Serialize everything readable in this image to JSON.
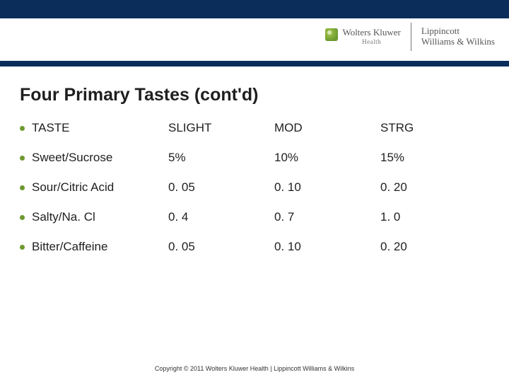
{
  "header": {
    "brand1_name": "Wolters Kluwer",
    "brand1_sub": "Health",
    "brand2_line1": "Lippincott",
    "brand2_line2": "Williams & Wilkins"
  },
  "title": "Four Primary Tastes (cont'd)",
  "table": {
    "columns": [
      "TASTE",
      "SLIGHT",
      "MOD",
      "STRG"
    ],
    "rows": [
      {
        "label": "Sweet/Sucrose",
        "values": [
          "5%",
          "10%",
          "15%"
        ]
      },
      {
        "label": "Sour/Citric Acid",
        "values": [
          "0. 05",
          "0. 10",
          "0. 20"
        ]
      },
      {
        "label": "Salty/Na. Cl",
        "values": [
          "0. 4",
          "0. 7",
          "1. 0"
        ]
      },
      {
        "label": "Bitter/Caffeine",
        "values": [
          "0. 05",
          "0. 10",
          "0. 20"
        ]
      }
    ]
  },
  "colors": {
    "header_blue": "#0a2d5a",
    "bullet_green": "#6d9a2f",
    "text": "#1f1f1f",
    "background": "#ffffff"
  },
  "copyright": "Copyright © 2011 Wolters Kluwer Health | Lippincott Williams & Wilkins"
}
